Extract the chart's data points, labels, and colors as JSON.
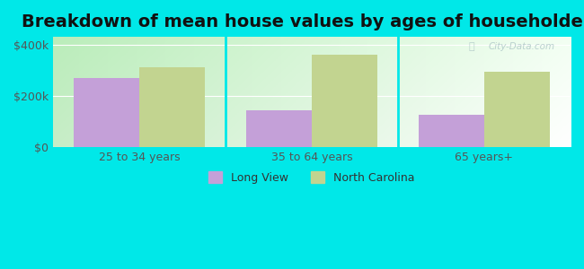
{
  "title": "Breakdown of mean house values by ages of householders",
  "categories": [
    "25 to 34 years",
    "35 to 64 years",
    "65 years+"
  ],
  "long_view_values": [
    270000,
    145000,
    125000
  ],
  "nc_values": [
    310000,
    360000,
    295000
  ],
  "bar_color_lv": "#c4a0d8",
  "bar_color_nc": "#c2d490",
  "bg_color": "#00e8e8",
  "plot_bg_left_top": "#c8e8c8",
  "plot_bg_right_bottom": "#f0fff0",
  "yticks": [
    0,
    200000,
    400000
  ],
  "ylabels": [
    "$0",
    "$200k",
    "$400k"
  ],
  "ylim": [
    0,
    430000
  ],
  "legend_lv": "Long View",
  "legend_nc": "North Carolina",
  "title_fontsize": 14,
  "tick_fontsize": 9,
  "legend_fontsize": 9,
  "bar_width": 0.38,
  "watermark": "City-Data.com"
}
